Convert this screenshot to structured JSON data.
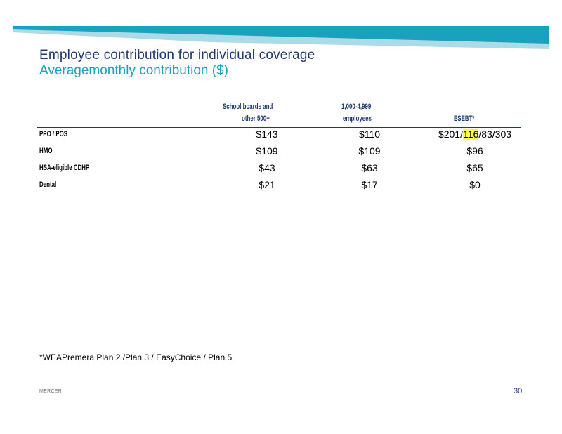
{
  "title": {
    "line1": "Employee contribution for individual coverage",
    "line2": "Averagemonthly  contribution ($)"
  },
  "table": {
    "headers": [
      {
        "line1": "School      boards      and",
        "line2": "other      500+"
      },
      {
        "line1": "1,000-4,999",
        "line2": "employees"
      },
      {
        "line1": "",
        "line2": "ESEBT*"
      }
    ],
    "rows": [
      {
        "label": "PPO    / POS",
        "values": [
          "$143",
          "$110"
        ],
        "esebt": {
          "pre": "$201/",
          "highlight": "116",
          "post": "/83/303"
        }
      },
      {
        "label": "HMO",
        "values": [
          "$109",
          "$109",
          "$96"
        ]
      },
      {
        "label": "HSA-eligible          CDHP",
        "values": [
          "$43",
          "$63",
          "$65"
        ]
      },
      {
        "label": "Dental",
        "values": [
          "$21",
          "$17",
          "$0"
        ]
      }
    ],
    "colors": {
      "header_text": "#1f3a73",
      "highlight": "#ffff3b"
    }
  },
  "footnote": "*WEAPremera Plan 2 /Plan 3 / EasyChoice / Plan 5",
  "footer": {
    "brand": "MERCER",
    "page_number": "30"
  },
  "banner_colors": {
    "dark": "#19a2bd",
    "light": "#a9dce8"
  }
}
